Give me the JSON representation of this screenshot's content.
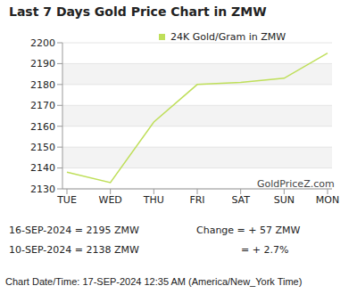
{
  "chart_data": {
    "type": "line",
    "title": "Last 7 Days Gold Price Chart in ZMW",
    "categories": [
      "TUE",
      "WED",
      "THU",
      "FRI",
      "SAT",
      "SUN",
      "MON"
    ],
    "series": [
      {
        "name": "24K Gold/Gram in ZMW",
        "color": "#bfdf5a",
        "values": [
          2138,
          2133,
          2162,
          2180,
          2181,
          2183,
          2195
        ],
        "marker": "none",
        "line_style": "solid"
      }
    ],
    "ylim": [
      2130,
      2200
    ],
    "yticks": [
      2130,
      2140,
      2150,
      2160,
      2170,
      2180,
      2190,
      2200
    ],
    "grid": true,
    "legend": "top",
    "annotations": [
      "GoldPriceZ.com",
      "16-SEP-2024 = 2195 ZMW",
      "Change = + 57 ZMW",
      "10-SEP-2024 = 2138 ZMW",
      "= + 2.7%",
      "Chart Date/Time: 17-SEP-2024 12:35 AM (America/New_York Time)"
    ]
  }
}
